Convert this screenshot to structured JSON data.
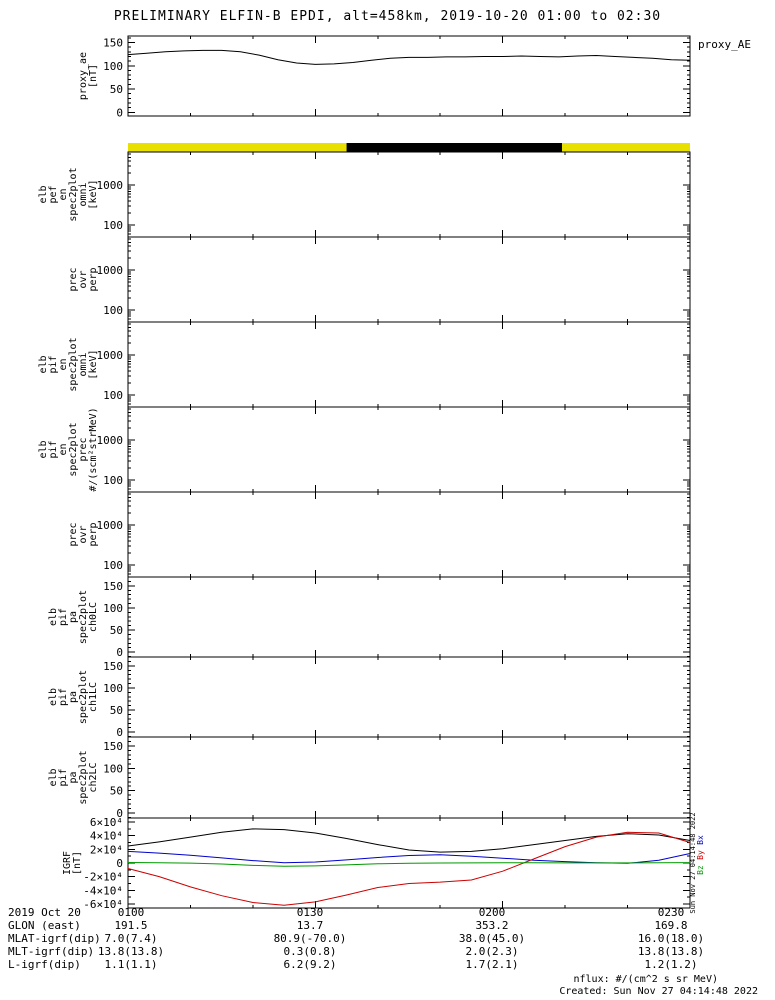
{
  "title": "PRELIMINARY ELFIN-B EPDI, alt=458km, 2019-10-20 01:00 to 02:30",
  "timestamp_vertical": "Sun Nov 27 04:14:48 2022",
  "footer": {
    "nflux_note": "nflux: #/(cm^2 s sr MeV)",
    "created": "Created: Sun Nov 27 04:14:48 2022"
  },
  "bottom_table": {
    "rows": [
      {
        "label": "2019 Oct 20",
        "values": [
          "0100",
          "0130",
          "0200",
          "0230"
        ]
      },
      {
        "label": "GLON (east)",
        "values": [
          "191.5",
          "13.7",
          "353.2",
          "169.8"
        ]
      },
      {
        "label": "MLAT-igrf(dip)",
        "values": [
          "7.0(7.4)",
          "80.9(-70.0)",
          "38.0(45.0)",
          "16.0(18.0)"
        ]
      },
      {
        "label": "MLT-igrf(dip)",
        "values": [
          "13.8(13.8)",
          "0.3(0.8)",
          "2.0(2.3)",
          "13.8(13.8)"
        ]
      },
      {
        "label": "L-igrf(dip)",
        "values": [
          "1.1(1.1)",
          "6.2(9.2)",
          "1.7(2.1)",
          "1.2(1.2)"
        ]
      }
    ]
  },
  "chart_data": [
    {
      "id": "proxy-ae",
      "type": "line",
      "label_lines": [
        "proxy_ae",
        "[nT]"
      ],
      "right_label": "proxy_AE",
      "ylim": [
        -8,
        164
      ],
      "yticks": [
        0,
        50,
        100,
        150
      ],
      "ytick_labels": [
        "0",
        "50",
        "100",
        "150"
      ],
      "yminor": 10,
      "xlim_minutes": [
        0,
        90
      ],
      "series": [
        {
          "name": "proxy_AE",
          "color": "#000000",
          "x": [
            0,
            3,
            6,
            9,
            12,
            15,
            18,
            21,
            24,
            27,
            30,
            33,
            36,
            39,
            42,
            45,
            48,
            51,
            54,
            57,
            60,
            63,
            66,
            69,
            72,
            75,
            78,
            81,
            84,
            87,
            90
          ],
          "y": [
            124,
            127,
            130,
            132,
            133,
            133,
            130,
            123,
            113,
            106,
            103,
            104,
            107,
            112,
            116,
            118,
            118,
            119,
            119,
            120,
            120,
            121,
            120,
            119,
            121,
            122,
            120,
            118,
            116,
            113,
            112
          ]
        }
      ]
    },
    {
      "id": "sunlight-bar",
      "type": "strip",
      "segments": [
        {
          "start": 0,
          "end": 35,
          "color": "#e8e000"
        },
        {
          "start": 35,
          "end": 69.5,
          "color": "#000000"
        },
        {
          "start": 69.5,
          "end": 90,
          "color": "#e8e000"
        }
      ]
    },
    {
      "id": "elb-pef-en-spec2plot-omni",
      "type": "line",
      "ylog": true,
      "label_lines": [
        "elb",
        "pef",
        "en",
        "spec2plot",
        "omni",
        "[keV]"
      ],
      "ylim": [
        50,
        6800
      ],
      "yticks": [
        100,
        1000
      ],
      "ytick_labels": [
        "100",
        "1000"
      ],
      "series": []
    },
    {
      "id": "elb-pef-prec-ovr-perp",
      "type": "line",
      "ylog": true,
      "label_lines": [
        "prec",
        "ovr",
        "perp"
      ],
      "ylim": [
        50,
        6800
      ],
      "yticks": [
        100,
        1000
      ],
      "ytick_labels": [
        "100",
        "1000"
      ],
      "series": []
    },
    {
      "id": "elb-pif-en-spec2plot-omni",
      "type": "line",
      "ylog": true,
      "label_lines": [
        "elb",
        "pif",
        "en",
        "spec2plot",
        "omni",
        "[keV]"
      ],
      "ylim": [
        50,
        6800
      ],
      "yticks": [
        100,
        1000
      ],
      "ytick_labels": [
        "100",
        "1000"
      ],
      "series": []
    },
    {
      "id": "elb-pif-en-spec2plot-prec",
      "type": "line",
      "ylog": true,
      "label_lines": [
        "elb",
        "pif",
        "en",
        "spec2plot",
        "prec",
        "#/(scm²strMeV)"
      ],
      "ylim": [
        50,
        6800
      ],
      "yticks": [
        100,
        1000
      ],
      "ytick_labels": [
        "100",
        "1000"
      ],
      "series": []
    },
    {
      "id": "elb-pif-prec-ovr-perp",
      "type": "line",
      "ylog": true,
      "label_lines": [
        "prec",
        "ovr",
        "perp"
      ],
      "ylim": [
        50,
        6800
      ],
      "yticks": [
        100,
        1000
      ],
      "ytick_labels": [
        "100",
        "1000"
      ],
      "series": []
    },
    {
      "id": "elb-pif-pa-spec2plot-ch0LC",
      "type": "line",
      "label_lines": [
        "elb",
        "pif",
        "pa",
        "spec2plot",
        "ch0LC"
      ],
      "ylim": [
        -11,
        170
      ],
      "yticks": [
        0,
        50,
        100,
        150
      ],
      "ytick_labels": [
        "0",
        "50",
        "100",
        "150"
      ],
      "yminor": 10,
      "series": []
    },
    {
      "id": "elb-pif-pa-spec2plot-ch1LC",
      "type": "line",
      "label_lines": [
        "elb",
        "pif",
        "pa",
        "spec2plot",
        "ch1LC"
      ],
      "ylim": [
        -11,
        170
      ],
      "yticks": [
        0,
        50,
        100,
        150
      ],
      "ytick_labels": [
        "0",
        "50",
        "100",
        "150"
      ],
      "yminor": 10,
      "series": []
    },
    {
      "id": "elb-pif-pa-spec2plot-ch2LC",
      "type": "line",
      "label_lines": [
        "elb",
        "pif",
        "pa",
        "spec2plot",
        "ch2LC"
      ],
      "ylim": [
        -11,
        170
      ],
      "yticks": [
        0,
        50,
        100,
        150
      ],
      "ytick_labels": [
        "0",
        "50",
        "100",
        "150"
      ],
      "yminor": 10,
      "series": []
    },
    {
      "id": "igrf",
      "type": "line",
      "label_lines": [
        "IGRF",
        "[nT]"
      ],
      "label_right": 80,
      "ylim": [
        -66000,
        66000
      ],
      "yticks": [
        -60000,
        -40000,
        -20000,
        0,
        20000,
        40000,
        60000
      ],
      "ytick_labels": [
        "-6×10⁴",
        "-4×10⁴",
        "-2×10⁴",
        "0",
        "2×10⁴",
        "4×10⁴",
        "6×10⁴"
      ],
      "yminor": 10000,
      "legend": [
        {
          "label": "Bx",
          "color": "#0000cc"
        },
        {
          "label": "By",
          "color": "#cc0000"
        },
        {
          "label": "Bz",
          "color": "#009900"
        }
      ],
      "series": [
        {
          "name": "Bt",
          "color": "#000000",
          "x": [
            0,
            5,
            10,
            15,
            20,
            25,
            30,
            35,
            40,
            45,
            50,
            55,
            60,
            65,
            70,
            75,
            80,
            85,
            90
          ],
          "y": [
            25000,
            31000,
            38000,
            45000,
            50000,
            49000,
            44000,
            36000,
            27000,
            19000,
            16000,
            17000,
            21000,
            27000,
            33000,
            39000,
            43000,
            41000,
            33000
          ]
        },
        {
          "name": "Bx",
          "color": "#0000cc",
          "x": [
            0,
            5,
            10,
            15,
            20,
            25,
            30,
            35,
            40,
            45,
            50,
            55,
            60,
            65,
            70,
            75,
            80,
            85,
            90
          ],
          "y": [
            17000,
            14500,
            11500,
            7500,
            3500,
            500,
            1500,
            4500,
            8000,
            11000,
            12000,
            10000,
            7000,
            4000,
            2000,
            500,
            -500,
            4000,
            14000
          ]
        },
        {
          "name": "By",
          "color": "#cc0000",
          "x": [
            0,
            5,
            10,
            15,
            20,
            25,
            30,
            35,
            40,
            45,
            50,
            55,
            60,
            65,
            70,
            75,
            80,
            85,
            90
          ],
          "y": [
            -8000,
            -20000,
            -35000,
            -48000,
            -58000,
            -62000,
            -57000,
            -47000,
            -36000,
            -30000,
            -28000,
            -25000,
            -12000,
            6000,
            24000,
            38000,
            45000,
            44000,
            30000
          ]
        },
        {
          "name": "Bz",
          "color": "#009900",
          "x": [
            0,
            5,
            10,
            15,
            20,
            25,
            30,
            35,
            40,
            45,
            50,
            55,
            60,
            65,
            70,
            75,
            80,
            85,
            90
          ],
          "y": [
            800,
            400,
            -200,
            -1500,
            -3500,
            -4800,
            -4200,
            -2800,
            -1200,
            -300,
            0,
            200,
            300,
            300,
            200,
            100,
            100,
            300,
            600
          ]
        }
      ]
    }
  ]
}
